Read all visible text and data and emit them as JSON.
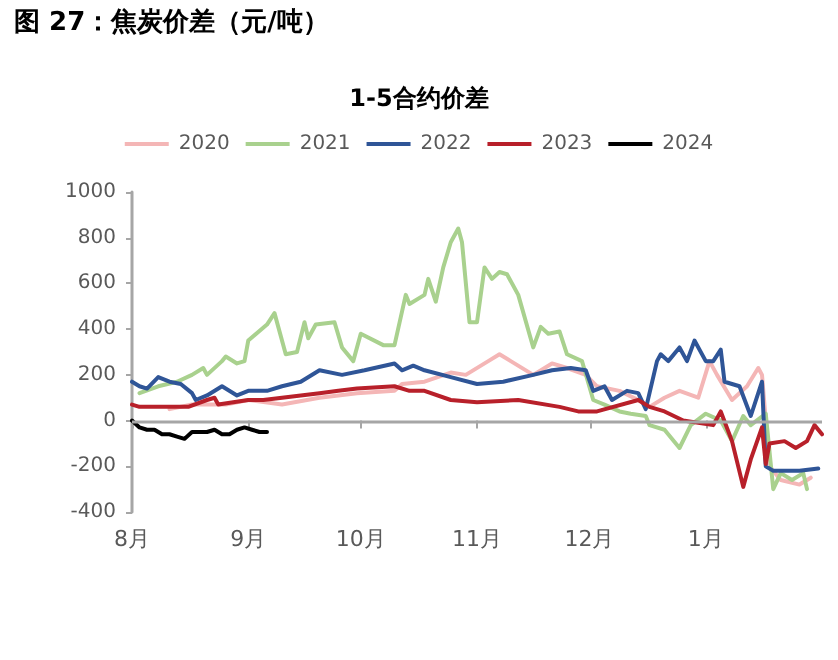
{
  "chart_data": {
    "type": "line",
    "title": "图 27：焦炭价差（元/吨）",
    "subtitle": "1-5合约价差",
    "xlim": [
      "2024-08-01",
      "2025-02-01"
    ],
    "xticks": [
      {
        "value": "2024-08-01",
        "label": "8月"
      },
      {
        "value": "2024-09-01",
        "label": "9月"
      },
      {
        "value": "2024-10-01",
        "label": "10月"
      },
      {
        "value": "2024-11-01",
        "label": "11月"
      },
      {
        "value": "2024-12-01",
        "label": "12月"
      },
      {
        "value": "2025-01-01",
        "label": "1月"
      }
    ],
    "ylim": [
      -400,
      1000
    ],
    "yticks": [
      -400,
      -200,
      0,
      200,
      400,
      600,
      800,
      1000
    ],
    "grid": false,
    "ref_lines": [
      {
        "axis": "y",
        "value": 0,
        "color": "#a6a6a6"
      }
    ],
    "legend": "top",
    "marker": "none",
    "line_style": "solid",
    "series": [
      {
        "name": "2020",
        "color": "#f4b6b6",
        "x": [
          "2024-08-11",
          "2024-08-17",
          "2024-08-26",
          "2024-09-01",
          "2024-09-10",
          "2024-09-20",
          "2024-09-30",
          "2024-10-10",
          "2024-10-12",
          "2024-10-18",
          "2024-10-25",
          "2024-10-29",
          "2024-11-04",
          "2024-11-07",
          "2024-11-10",
          "2024-11-16",
          "2024-11-21",
          "2024-11-25",
          "2024-11-30",
          "2024-12-03",
          "2024-12-09",
          "2024-12-14",
          "2024-12-17",
          "2024-12-21",
          "2024-12-25",
          "2024-12-30",
          "2025-01-02",
          "2025-01-04",
          "2025-01-08",
          "2025-01-12",
          "2025-01-15",
          "2025-01-16",
          "2025-01-18",
          "2025-01-21",
          "2025-01-26",
          "2025-01-29"
        ],
        "values": [
          50,
          70,
          70,
          90,
          70,
          100,
          120,
          130,
          160,
          170,
          210,
          200,
          260,
          290,
          260,
          200,
          250,
          230,
          200,
          150,
          130,
          90,
          60,
          100,
          130,
          100,
          260,
          200,
          90,
          150,
          230,
          200,
          -200,
          -260,
          -280,
          -250
        ]
      },
      {
        "name": "2021",
        "color": "#a9d18e",
        "x": [
          "2024-08-03",
          "2024-08-08",
          "2024-08-13",
          "2024-08-17",
          "2024-08-20",
          "2024-08-21",
          "2024-08-25",
          "2024-08-26",
          "2024-08-29",
          "2024-08-31",
          "2024-09-01",
          "2024-09-06",
          "2024-09-08",
          "2024-09-11",
          "2024-09-14",
          "2024-09-16",
          "2024-09-17",
          "2024-09-19",
          "2024-09-24",
          "2024-09-26",
          "2024-09-29",
          "2024-10-01",
          "2024-10-07",
          "2024-10-10",
          "2024-10-13",
          "2024-10-14",
          "2024-10-18",
          "2024-10-19",
          "2024-10-21",
          "2024-10-23",
          "2024-10-25",
          "2024-10-27",
          "2024-10-28",
          "2024-10-30",
          "2024-11-01",
          "2024-11-03",
          "2024-11-05",
          "2024-11-07",
          "2024-11-09",
          "2024-11-12",
          "2024-11-16",
          "2024-11-18",
          "2024-11-20",
          "2024-11-23",
          "2024-11-25",
          "2024-11-29",
          "2024-12-02",
          "2024-12-05",
          "2024-12-09",
          "2024-12-12",
          "2024-12-16",
          "2024-12-17",
          "2024-12-21",
          "2024-12-25",
          "2024-12-28",
          "2025-01-01",
          "2025-01-05",
          "2025-01-08",
          "2025-01-11",
          "2025-01-13",
          "2025-01-17",
          "2025-01-19",
          "2025-01-21",
          "2025-01-24",
          "2025-01-27",
          "2025-01-28"
        ],
        "values": [
          120,
          150,
          170,
          200,
          230,
          200,
          260,
          280,
          250,
          260,
          350,
          420,
          470,
          290,
          300,
          430,
          360,
          420,
          430,
          320,
          260,
          380,
          330,
          330,
          550,
          510,
          550,
          620,
          520,
          670,
          780,
          840,
          780,
          430,
          430,
          670,
          620,
          650,
          640,
          550,
          320,
          410,
          380,
          390,
          290,
          260,
          90,
          70,
          40,
          30,
          20,
          -20,
          -40,
          -120,
          -20,
          30,
          0,
          -90,
          20,
          -20,
          30,
          -300,
          -230,
          -260,
          -230,
          -300
        ]
      },
      {
        "name": "2022",
        "color": "#2f5597",
        "x": [
          "2024-08-01",
          "2024-08-03",
          "2024-08-05",
          "2024-08-08",
          "2024-08-11",
          "2024-08-14",
          "2024-08-17",
          "2024-08-18",
          "2024-08-21",
          "2024-08-25",
          "2024-08-29",
          "2024-09-01",
          "2024-09-06",
          "2024-09-10",
          "2024-09-15",
          "2024-09-20",
          "2024-09-26",
          "2024-10-02",
          "2024-10-10",
          "2024-10-12",
          "2024-10-15",
          "2024-10-18",
          "2024-10-25",
          "2024-11-01",
          "2024-11-08",
          "2024-11-16",
          "2024-11-21",
          "2024-11-26",
          "2024-11-30",
          "2024-12-02",
          "2024-12-05",
          "2024-12-07",
          "2024-12-11",
          "2024-12-14",
          "2024-12-16",
          "2024-12-19",
          "2024-12-20",
          "2024-12-22",
          "2024-12-25",
          "2024-12-27",
          "2024-12-29",
          "2025-01-01",
          "2025-01-03",
          "2025-01-05",
          "2025-01-06",
          "2025-01-10",
          "2025-01-13",
          "2025-01-16",
          "2025-01-17",
          "2025-01-19",
          "2025-01-26",
          "2025-01-31"
        ],
        "values": [
          170,
          150,
          140,
          190,
          170,
          160,
          120,
          90,
          110,
          150,
          110,
          130,
          130,
          150,
          170,
          220,
          200,
          220,
          250,
          220,
          240,
          220,
          190,
          160,
          170,
          200,
          220,
          230,
          220,
          130,
          150,
          90,
          130,
          120,
          50,
          260,
          290,
          260,
          320,
          260,
          350,
          260,
          260,
          310,
          170,
          150,
          20,
          170,
          -200,
          -220,
          -220,
          -210
        ]
      },
      {
        "name": "2023",
        "color": "#b8202a",
        "x": [
          "2024-08-01",
          "2024-08-03",
          "2024-08-16",
          "2024-08-21",
          "2024-08-23",
          "2024-08-24",
          "2024-09-01",
          "2024-09-05",
          "2024-09-10",
          "2024-09-15",
          "2024-09-20",
          "2024-09-25",
          "2024-09-30",
          "2024-10-10",
          "2024-10-14",
          "2024-10-18",
          "2024-10-25",
          "2024-11-01",
          "2024-11-12",
          "2024-11-23",
          "2024-11-28",
          "2024-12-03",
          "2024-12-14",
          "2024-12-17",
          "2024-12-21",
          "2024-12-26",
          "2025-01-03",
          "2025-01-05",
          "2025-01-08",
          "2025-01-11",
          "2025-01-13",
          "2025-01-16",
          "2025-01-17",
          "2025-01-18",
          "2025-01-22",
          "2025-01-25",
          "2025-01-28",
          "2025-01-30",
          "2025-02-01"
        ],
        "values": [
          70,
          60,
          60,
          90,
          100,
          70,
          90,
          90,
          100,
          110,
          120,
          130,
          140,
          150,
          130,
          130,
          90,
          80,
          90,
          60,
          40,
          40,
          90,
          60,
          40,
          0,
          -20,
          40,
          -90,
          -290,
          -170,
          -30,
          -190,
          -100,
          -90,
          -120,
          -90,
          -20,
          -60
        ]
      },
      {
        "name": "2024",
        "color": "#000000",
        "x": [
          "2024-08-01",
          "2024-08-03",
          "2024-08-05",
          "2024-08-07",
          "2024-08-09",
          "2024-08-11",
          "2024-08-13",
          "2024-08-15",
          "2024-08-17",
          "2024-08-19",
          "2024-08-21",
          "2024-08-23",
          "2024-08-25",
          "2024-08-27",
          "2024-08-29",
          "2024-08-31",
          "2024-09-02",
          "2024-09-04",
          "2024-09-06"
        ],
        "values": [
          0,
          -30,
          -40,
          -40,
          -60,
          -60,
          -70,
          -80,
          -50,
          -50,
          -50,
          -40,
          -60,
          -60,
          -40,
          -30,
          -40,
          -50,
          -50
        ]
      }
    ]
  }
}
